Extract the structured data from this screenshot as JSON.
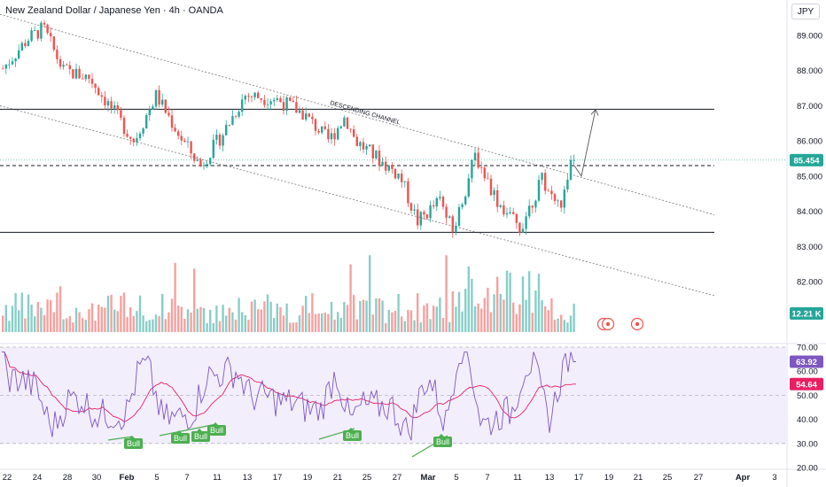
{
  "header": {
    "symbol_title": "New Zealand Dollar / Japanese Yen · 4h · OANDA",
    "currency": "JPY"
  },
  "price_axis": {
    "ticks": [
      "89.000",
      "88.000",
      "87.000",
      "86.000",
      "85.000",
      "84.000",
      "83.000",
      "82.000"
    ],
    "last_price": "85.454",
    "volume_label": "12.21 K"
  },
  "rsi_axis": {
    "ticks": [
      "70.00",
      "60.00",
      "50.00",
      "40.00",
      "30.00",
      "20.00"
    ],
    "rsi_value": "63.92",
    "rsi_ma_value": "54.64"
  },
  "time_axis": {
    "labels": [
      "22",
      "24",
      "28",
      "30",
      "Feb",
      "5",
      "7",
      "11",
      "13",
      "17",
      "19",
      "21",
      "25",
      "27",
      "Mar",
      "5",
      "7",
      "11",
      "13",
      "17",
      "19",
      "21",
      "25",
      "27",
      "Apr",
      "3"
    ]
  },
  "annotations": {
    "channel_label": "DESCENDING CHANNEL"
  },
  "signals": {
    "labels": [
      "Bull",
      "Bull",
      "Bull",
      "Bull",
      "Bull",
      "Bull"
    ]
  },
  "colors": {
    "up": "#26a69a",
    "down": "#ef5350",
    "rsi_line": "#7e57c2",
    "rsi_ma": "#e91e63",
    "bull_badge": "#4caf50",
    "last_price_badge": "#26a69a",
    "rsi_band": "#f3eefc"
  },
  "chart_data": {
    "type": "candlestick",
    "instrument": "NZD/JPY",
    "timeframe": "4h",
    "ylim": [
      81.6,
      89.4
    ],
    "support_resistance": [
      86.9,
      83.4
    ],
    "dashed_level": 85.3,
    "last_price": 85.454,
    "price_path": [
      [
        0,
        88.0
      ],
      [
        30,
        88.9
      ],
      [
        48,
        89.2
      ],
      [
        70,
        88.0
      ],
      [
        100,
        87.8
      ],
      [
        125,
        86.9
      ],
      [
        150,
        86.0
      ],
      [
        175,
        87.3
      ],
      [
        205,
        86.0
      ],
      [
        225,
        85.3
      ],
      [
        250,
        86.2
      ],
      [
        275,
        87.3
      ],
      [
        310,
        87.2
      ],
      [
        340,
        86.8
      ],
      [
        370,
        86.0
      ],
      [
        388,
        86.7
      ],
      [
        400,
        86.0
      ],
      [
        430,
        85.4
      ],
      [
        450,
        85.0
      ],
      [
        470,
        83.7
      ],
      [
        495,
        84.3
      ],
      [
        510,
        83.4
      ],
      [
        535,
        85.6
      ],
      [
        560,
        84.3
      ],
      [
        585,
        83.5
      ],
      [
        610,
        84.9
      ],
      [
        630,
        84.1
      ],
      [
        650,
        85.45
      ]
    ],
    "projection": [
      [
        650,
        85.0
      ],
      [
        672,
        86.9
      ]
    ],
    "rsi": {
      "ylim": [
        20,
        75
      ],
      "overbought": 70,
      "oversold": 30,
      "midline": 50,
      "current": 63.92,
      "ma_current": 54.64
    }
  }
}
